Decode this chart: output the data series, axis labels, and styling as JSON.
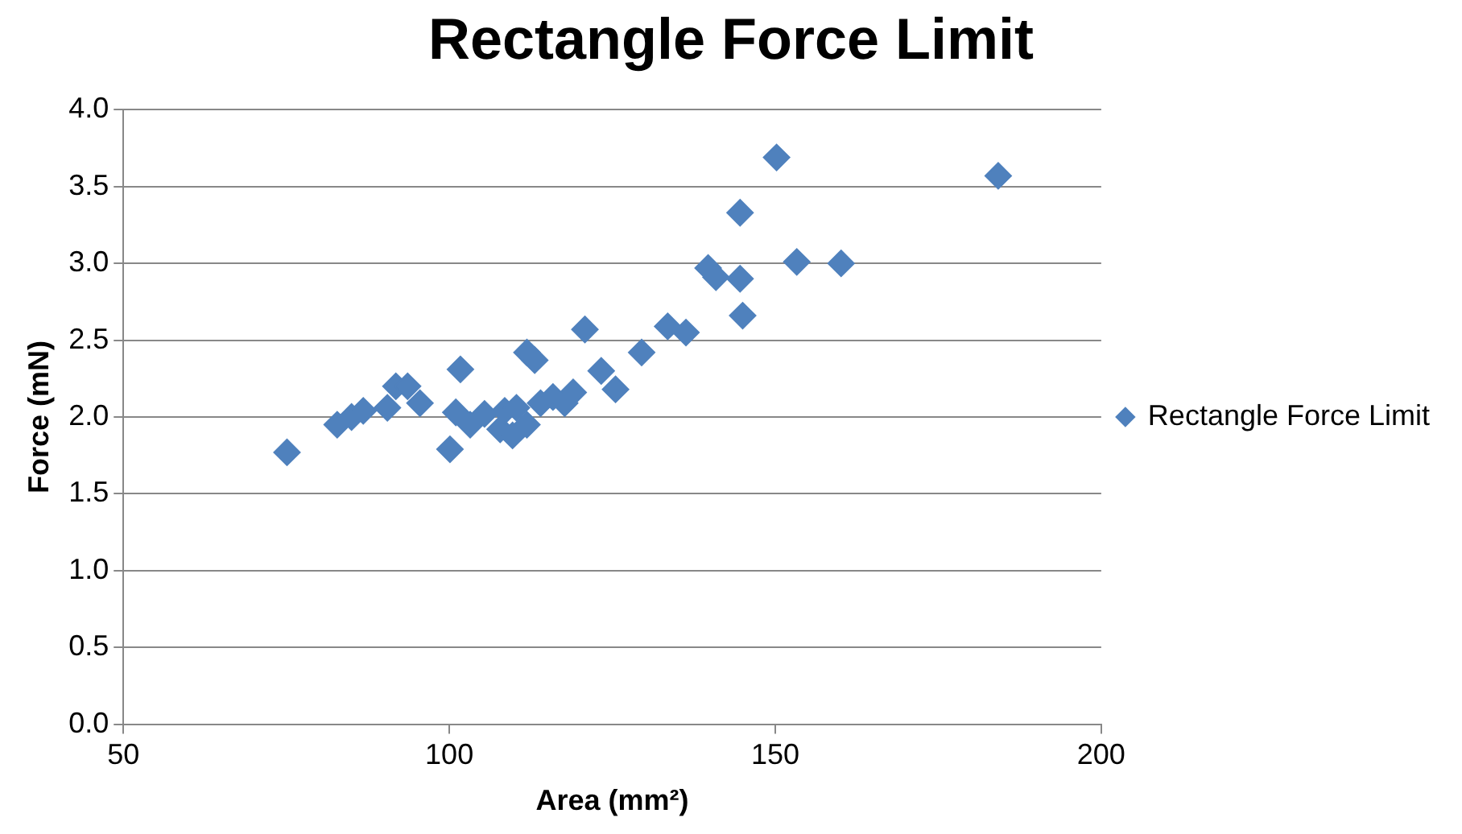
{
  "chart_data": {
    "type": "scatter",
    "title": "Rectangle Force Limit",
    "xlabel": "Area (mm²)",
    "ylabel": "Force (mN)",
    "xlim": [
      50,
      200
    ],
    "xticks": [
      50,
      100,
      150,
      200
    ],
    "ylim": [
      0,
      4
    ],
    "yticks": [
      {
        "value": 0,
        "label": "0.0"
      },
      {
        "value": 0.5,
        "label": "0.5"
      },
      {
        "value": 1,
        "label": "1.0"
      },
      {
        "value": 1.5,
        "label": "1.5"
      },
      {
        "value": 2,
        "label": "2.0"
      },
      {
        "value": 2.5,
        "label": "2.5"
      },
      {
        "value": 3,
        "label": "3.0"
      },
      {
        "value": 3.5,
        "label": "3.5"
      },
      {
        "value": 4,
        "label": "4.0"
      }
    ],
    "grid": "y",
    "legend": "right",
    "marker": "diamond",
    "series": [
      {
        "name": "Rectangle Force Limit",
        "color": "#4f81bd",
        "x": [
          75.1,
          82.8,
          85,
          86.8,
          88.7,
          90.2,
          91.8,
          93.6,
          90.5,
          95.5,
          100.1,
          101.7,
          101,
          103.2,
          105.4,
          107.8,
          108.5,
          110.3,
          111.9,
          111.9,
          113.1,
          114,
          115.9,
          117.7,
          119,
          120.8,
          123.3,
          125.5,
          129.5,
          133.5,
          136.3,
          139.7,
          140.9,
          144.6,
          145,
          144.6,
          150.2,
          153.3,
          160.1,
          184.2,
          109.7
        ],
        "values": [
          1.77,
          1.95,
          2.0,
          2.04,
          null,
          null,
          2.2,
          2.2,
          2.06,
          2.09,
          1.79,
          2.31,
          2.03,
          1.95,
          2.02,
          1.92,
          2.04,
          2.06,
          1.95,
          2.42,
          2.37,
          2.09,
          2.13,
          2.09,
          2.16,
          2.57,
          2.3,
          2.18,
          2.42,
          2.59,
          2.55,
          2.97,
          2.91,
          2.9,
          2.66,
          3.33,
          3.69,
          3.01,
          3.0,
          3.57,
          1.88
        ]
      }
    ]
  }
}
